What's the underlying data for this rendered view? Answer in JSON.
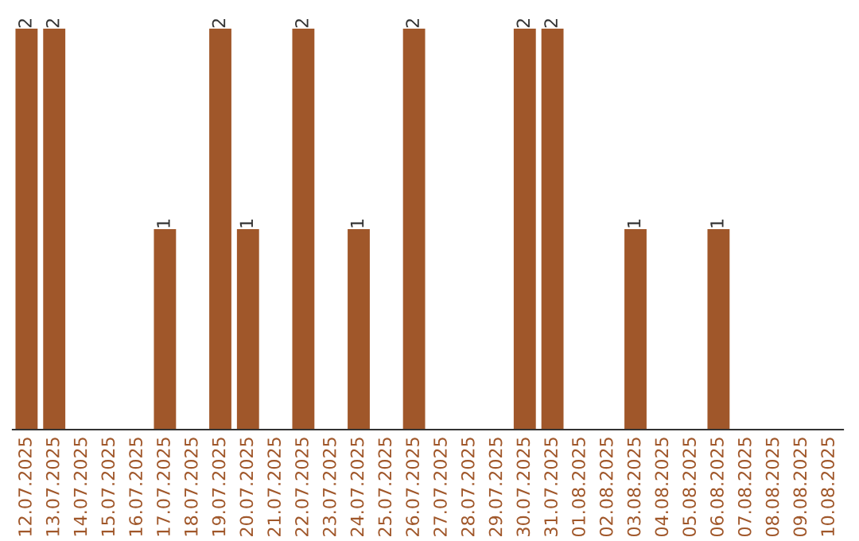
{
  "chart_data": {
    "type": "bar",
    "categories": [
      "12.07.2025",
      "13.07.2025",
      "14.07.2025",
      "15.07.2025",
      "16.07.2025",
      "17.07.2025",
      "18.07.2025",
      "19.07.2025",
      "20.07.2025",
      "21.07.2025",
      "22.07.2025",
      "23.07.2025",
      "24.07.2025",
      "25.07.2025",
      "26.07.2025",
      "27.07.2025",
      "28.07.2025",
      "29.07.2025",
      "30.07.2025",
      "31.07.2025",
      "01.08.2025",
      "02.08.2025",
      "03.08.2025",
      "04.08.2025",
      "05.08.2025",
      "06.08.2025",
      "07.08.2025",
      "08.08.2025",
      "09.08.2025",
      "10.08.2025"
    ],
    "values": [
      2,
      2,
      0,
      0,
      0,
      1,
      0,
      2,
      1,
      0,
      2,
      0,
      1,
      0,
      2,
      0,
      0,
      0,
      2,
      2,
      0,
      0,
      1,
      0,
      0,
      1,
      0,
      0,
      0,
      0
    ],
    "value_labels": [
      "2",
      "2",
      null,
      null,
      null,
      "1",
      null,
      "2",
      "1",
      null,
      "2",
      null,
      "1",
      null,
      "2",
      null,
      null,
      null,
      "2",
      "2",
      null,
      null,
      "1",
      null,
      null,
      "1",
      null,
      null,
      null,
      null
    ],
    "color": "#a0572a",
    "ylim": [
      0,
      2
    ],
    "tick_labels": "x",
    "grid": false
  }
}
